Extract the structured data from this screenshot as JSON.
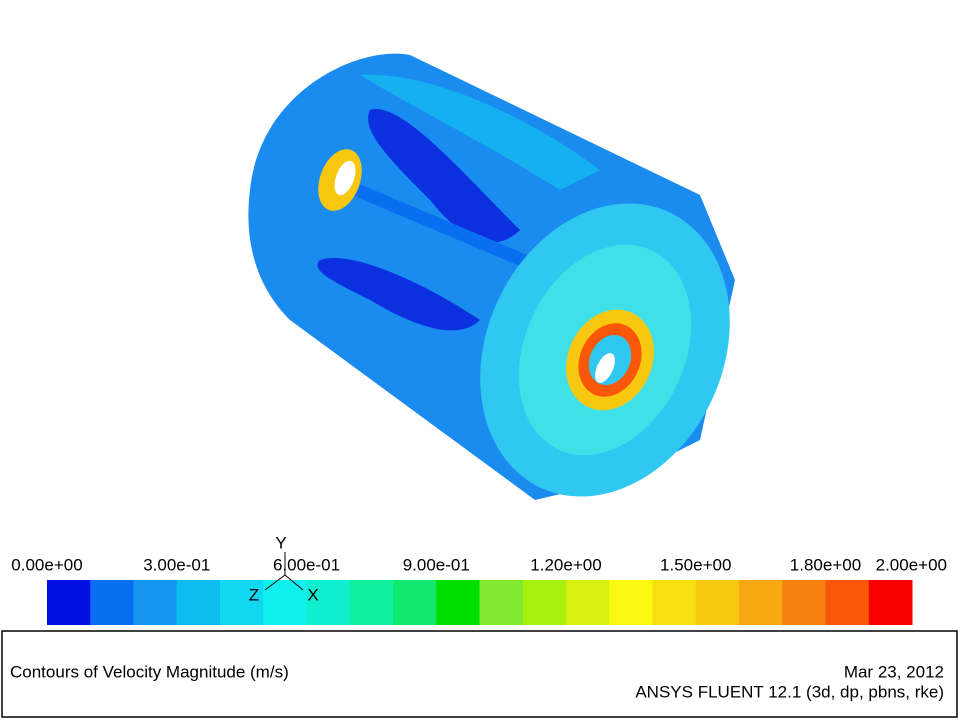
{
  "colormap": {
    "range": [
      0,
      2
    ],
    "colors": [
      "#0010e0",
      "#0a6ef0",
      "#1496f0",
      "#0cbcf0",
      "#10d8f0",
      "#10f0f0",
      "#10f0d0",
      "#10f0a0",
      "#10e870",
      "#00e000",
      "#80e830",
      "#a8f010",
      "#d8f010",
      "#f8f810",
      "#f8e010",
      "#f8c810",
      "#f8a810",
      "#f88010",
      "#f85808",
      "#f80000"
    ],
    "ticks": [
      {
        "value": 0,
        "label": "0.00e+00"
      },
      {
        "value": 0.3,
        "label": "3.00e-01"
      },
      {
        "value": 0.6,
        "label": "6.00e-01"
      },
      {
        "value": 0.9,
        "label": "9.00e-01"
      },
      {
        "value": 1.2,
        "label": "1.20e+00"
      },
      {
        "value": 1.5,
        "label": "1.50e+00"
      },
      {
        "value": 1.8,
        "label": "1.80e+00"
      },
      {
        "value": 2,
        "label": "2.00e+00"
      }
    ]
  },
  "triad": {
    "y": "Y",
    "z": "Z",
    "x": "X"
  },
  "caption": {
    "title": "Contours of Velocity Magnitude (m/s)",
    "date": "Mar 23, 2012",
    "software": "ANSYS FLUENT 12.1 (3d, dp, pbns, rke)"
  }
}
